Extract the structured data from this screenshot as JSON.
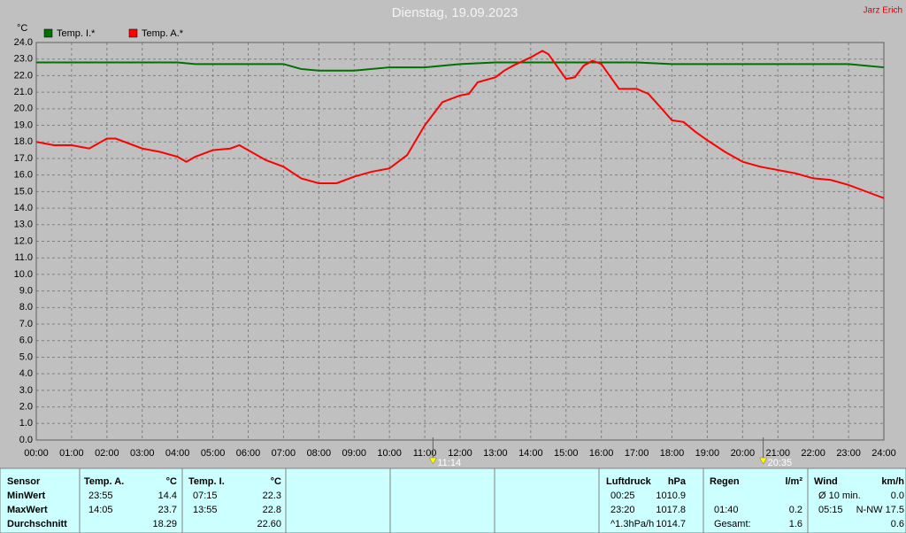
{
  "chart_data": {
    "type": "line",
    "title": "Dienstag, 19.09.2023",
    "y_label": "°C",
    "grid": true,
    "xlim": [
      0,
      24
    ],
    "ylim": [
      0,
      24
    ],
    "xticks": [
      {
        "value": 0,
        "label": "00:00"
      },
      {
        "value": 1,
        "label": "01:00"
      },
      {
        "value": 2,
        "label": "02:00"
      },
      {
        "value": 3,
        "label": "03:00"
      },
      {
        "value": 4,
        "label": "04:00"
      },
      {
        "value": 5,
        "label": "05:00"
      },
      {
        "value": 6,
        "label": "06:00"
      },
      {
        "value": 7,
        "label": "07:00"
      },
      {
        "value": 8,
        "label": "08:00"
      },
      {
        "value": 9,
        "label": "09:00"
      },
      {
        "value": 10,
        "label": "10:00"
      },
      {
        "value": 11,
        "label": "11:00"
      },
      {
        "value": 12,
        "label": "12:00"
      },
      {
        "value": 13,
        "label": "13:00"
      },
      {
        "value": 14,
        "label": "14:00"
      },
      {
        "value": 15,
        "label": "15:00"
      },
      {
        "value": 16,
        "label": "16:00"
      },
      {
        "value": 17,
        "label": "17:00"
      },
      {
        "value": 18,
        "label": "18:00"
      },
      {
        "value": 19,
        "label": "19:00"
      },
      {
        "value": 20,
        "label": "20:00"
      },
      {
        "value": 21,
        "label": "21:00"
      },
      {
        "value": 22,
        "label": "22:00"
      },
      {
        "value": 23,
        "label": "23:00"
      },
      {
        "value": 24,
        "label": "24:00"
      }
    ],
    "yticks": [
      {
        "value": 0,
        "label": "0.0"
      },
      {
        "value": 1,
        "label": "1.0"
      },
      {
        "value": 2,
        "label": "2.0"
      },
      {
        "value": 3,
        "label": "3.0"
      },
      {
        "value": 4,
        "label": "4.0"
      },
      {
        "value": 5,
        "label": "5.0"
      },
      {
        "value": 6,
        "label": "6.0"
      },
      {
        "value": 7,
        "label": "7.0"
      },
      {
        "value": 8,
        "label": "8.0"
      },
      {
        "value": 9,
        "label": "9.0"
      },
      {
        "value": 10,
        "label": "10.0"
      },
      {
        "value": 11,
        "label": "11.0"
      },
      {
        "value": 12,
        "label": "12.0"
      },
      {
        "value": 13,
        "label": "13.0"
      },
      {
        "value": 14,
        "label": "14.0"
      },
      {
        "value": 15,
        "label": "15.0"
      },
      {
        "value": 16,
        "label": "16.0"
      },
      {
        "value": 17,
        "label": "17.0"
      },
      {
        "value": 18,
        "label": "18.0"
      },
      {
        "value": 19,
        "label": "19.0"
      },
      {
        "value": 20,
        "label": "20.0"
      },
      {
        "value": 21,
        "label": "21.0"
      },
      {
        "value": 22,
        "label": "22.0"
      },
      {
        "value": 23,
        "label": "23.0"
      },
      {
        "value": 24,
        "label": "24.0"
      }
    ],
    "series": [
      {
        "name": "Temp. I.*",
        "color": "#007000",
        "x": [
          0,
          4,
          4.5,
          7,
          7.5,
          8,
          9,
          10,
          11,
          12,
          13,
          14,
          16,
          17,
          18,
          20,
          21,
          23,
          24
        ],
        "values": [
          22.8,
          22.8,
          22.7,
          22.7,
          22.4,
          22.3,
          22.3,
          22.5,
          22.5,
          22.7,
          22.8,
          22.8,
          22.8,
          22.8,
          22.7,
          22.7,
          22.7,
          22.7,
          22.5
        ]
      },
      {
        "name": "Temp. A.*",
        "color": "#ff0000",
        "x": [
          0,
          0.5,
          1,
          1.5,
          2,
          2.25,
          3,
          3.5,
          4,
          4.25,
          4.5,
          5,
          5.5,
          5.75,
          6,
          6.5,
          7,
          7.5,
          8,
          8.5,
          9,
          9.5,
          10,
          10.5,
          11,
          11.5,
          12,
          12.25,
          12.5,
          13,
          13.25,
          13.5,
          14,
          14.33,
          14.5,
          15,
          15.25,
          15.5,
          15.75,
          16,
          16.5,
          17,
          17.33,
          17.67,
          18,
          18.33,
          18.67,
          19,
          19.5,
          20,
          20.5,
          21,
          21.5,
          22,
          22.5,
          23,
          23.5,
          24
        ],
        "values": [
          18.0,
          17.8,
          17.8,
          17.6,
          18.2,
          18.2,
          17.6,
          17.4,
          17.1,
          16.8,
          17.1,
          17.5,
          17.6,
          17.8,
          17.5,
          16.9,
          16.5,
          15.8,
          15.5,
          15.5,
          15.9,
          16.2,
          16.4,
          17.2,
          19.0,
          20.4,
          20.8,
          20.9,
          21.6,
          21.9,
          22.3,
          22.6,
          23.1,
          23.5,
          23.3,
          21.8,
          21.9,
          22.6,
          22.9,
          22.7,
          21.2,
          21.2,
          20.9,
          20.1,
          19.3,
          19.2,
          18.6,
          18.1,
          17.4,
          16.8,
          16.5,
          16.3,
          16.1,
          15.8,
          15.7,
          15.4,
          15.0,
          14.6
        ]
      }
    ],
    "annotations": [
      {
        "x": 11.233,
        "label": "11:14"
      },
      {
        "x": 20.583,
        "label": "20:35"
      }
    ]
  },
  "author": "Jarz Erich",
  "stats": {
    "row_labels": [
      "Sensor",
      "MinWert",
      "MaxWert",
      "Durchschnitt"
    ],
    "groups": [
      {
        "title": "Temp. A.",
        "unit": "°C",
        "rows": [
          [
            "23:55",
            "14.4"
          ],
          [
            "14:05",
            "23.7"
          ],
          [
            null,
            "18.29"
          ]
        ]
      },
      {
        "title": "Temp. I.",
        "unit": "°C",
        "rows": [
          [
            "07:15",
            "22.3"
          ],
          [
            "13:55",
            "22.8"
          ],
          [
            null,
            "22.60"
          ]
        ]
      },
      {
        "title": "Luftdruck",
        "unit": "hPa",
        "rows": [
          [
            "00:25",
            "1010.9"
          ],
          [
            "23:20",
            "1017.8"
          ],
          [
            "^1.3hPa/h",
            "1014.7"
          ]
        ]
      },
      {
        "title": "Regen",
        "unit": "l/m²",
        "rows": [
          [
            null,
            null
          ],
          [
            "01:40",
            "0.2"
          ],
          [
            "Gesamt:",
            "1.6"
          ]
        ]
      },
      {
        "title": "Wind",
        "unit": "km/h",
        "rows": [
          [
            "Ø 10 min.",
            "0.0"
          ],
          [
            "05:15",
            "N-NW 17.5"
          ],
          [
            null,
            "0.6"
          ]
        ]
      }
    ]
  }
}
